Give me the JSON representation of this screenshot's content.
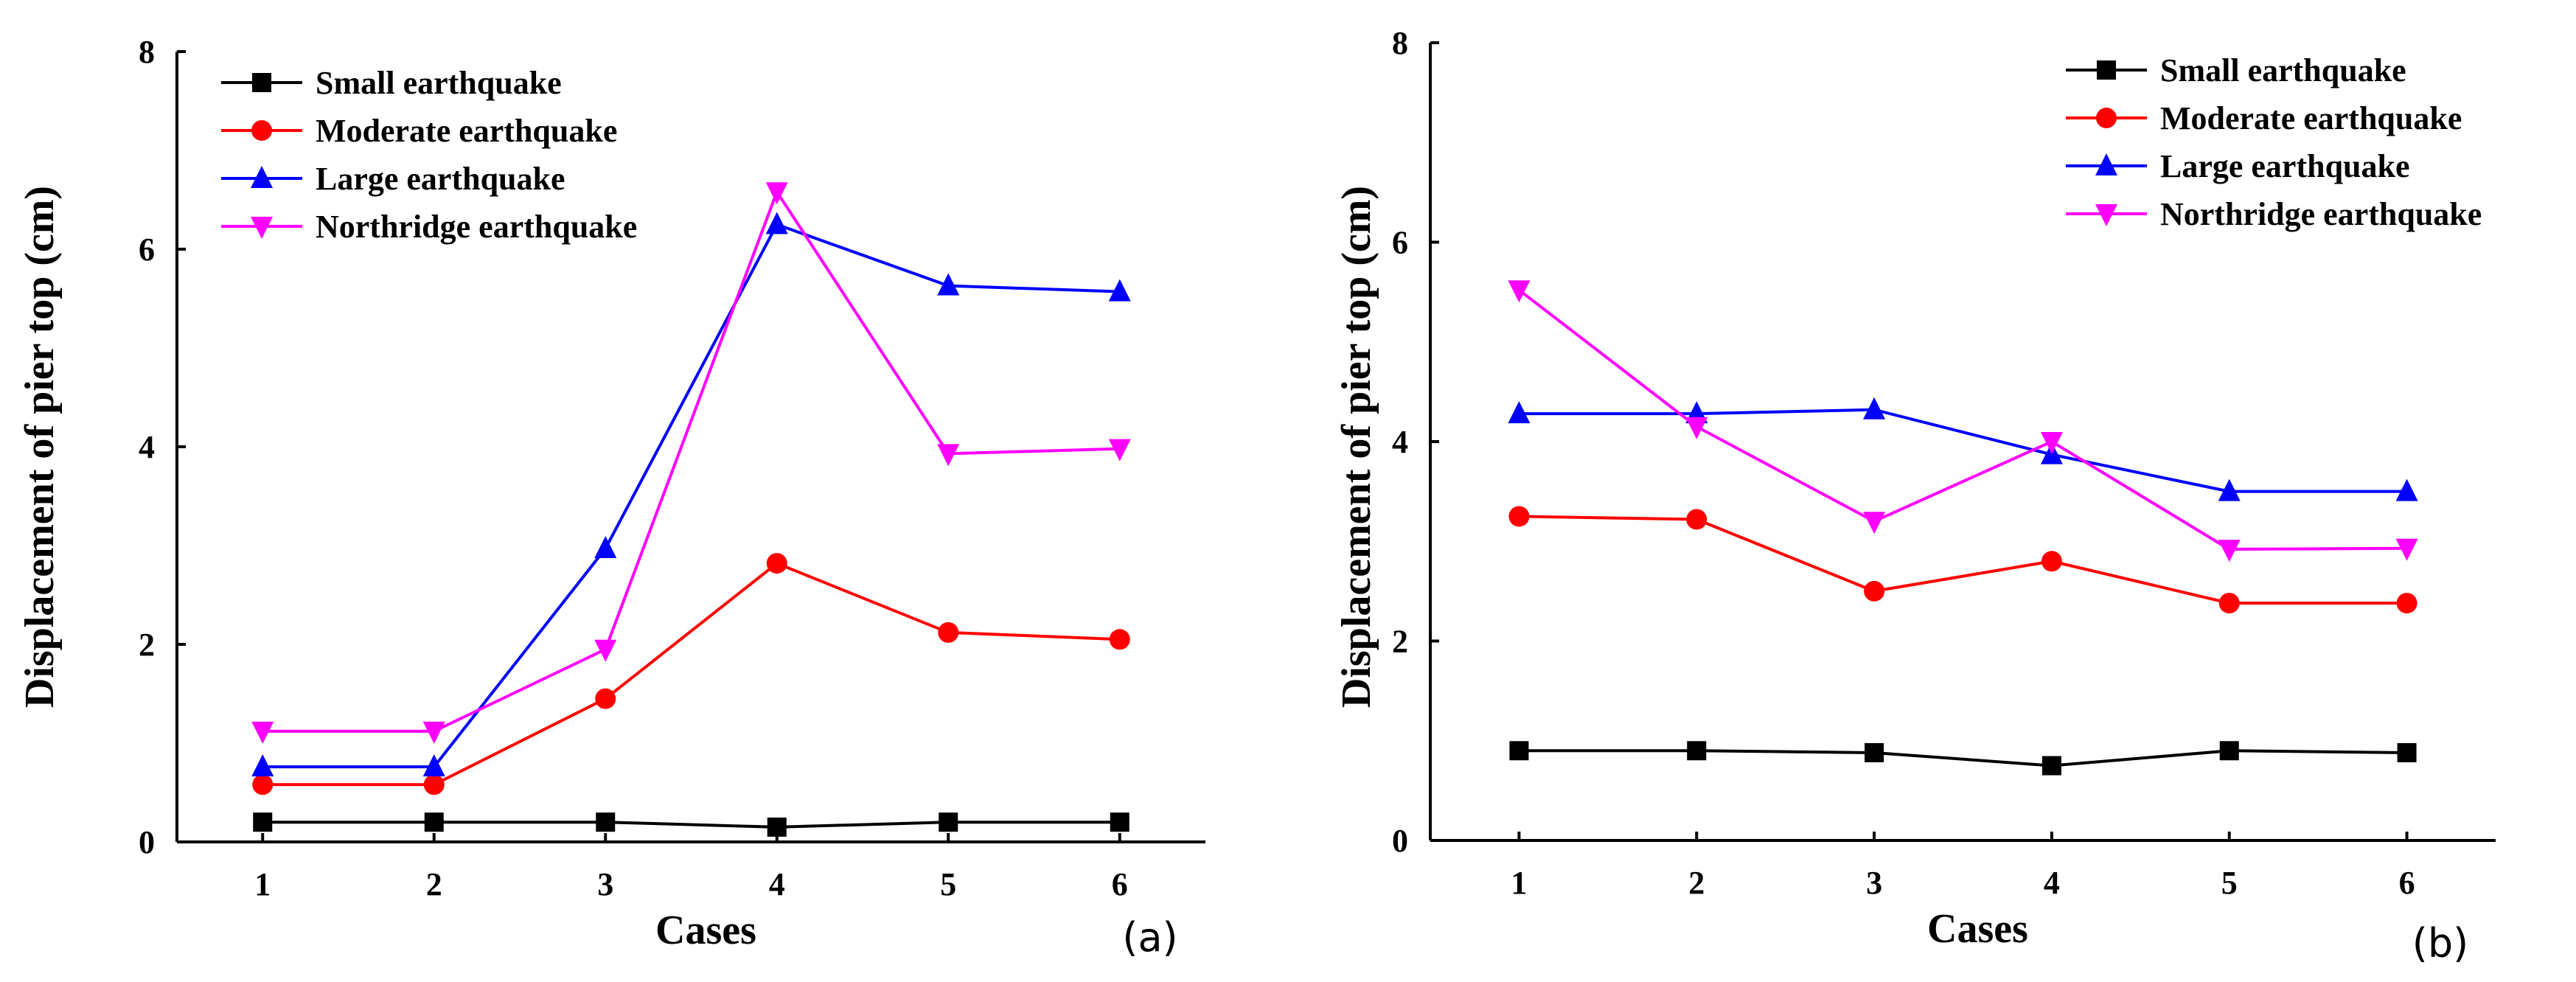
{
  "chart_data": [
    {
      "type": "line",
      "panel_label": "(a)",
      "xlabel": "Cases",
      "ylabel": "Displacement of pier top (cm)",
      "x": [
        1,
        2,
        3,
        4,
        5,
        6
      ],
      "xticks": [
        "1",
        "2",
        "3",
        "4",
        "5",
        "6"
      ],
      "yticks": [
        "0",
        "2",
        "4",
        "6",
        "8"
      ],
      "xlim": [
        0.5,
        6.5
      ],
      "ylim": [
        0,
        8
      ],
      "legend_position": "top-left",
      "series": [
        {
          "name": "Small earthquake",
          "color": "#000000",
          "marker": "square",
          "values": [
            0.2,
            0.2,
            0.2,
            0.15,
            0.2,
            0.2
          ]
        },
        {
          "name": "Moderate earthquake",
          "color": "#ff0000",
          "marker": "circle",
          "values": [
            0.58,
            0.58,
            1.45,
            2.82,
            2.12,
            2.05
          ]
        },
        {
          "name": "Large earthquake",
          "color": "#0000ff",
          "marker": "triangle-up",
          "values": [
            0.76,
            0.76,
            2.97,
            6.25,
            5.63,
            5.57
          ]
        },
        {
          "name": "Northridge earthquake",
          "color": "#ff00ff",
          "marker": "triangle-down",
          "values": [
            1.12,
            1.12,
            1.95,
            6.58,
            3.93,
            3.98
          ]
        }
      ]
    },
    {
      "type": "line",
      "panel_label": "(b)",
      "xlabel": "Cases",
      "ylabel": "Displacement of pier top (cm)",
      "x": [
        1,
        2,
        3,
        4,
        5,
        6
      ],
      "xticks": [
        "1",
        "2",
        "3",
        "4",
        "5",
        "6"
      ],
      "yticks": [
        "0",
        "2",
        "4",
        "6",
        "8"
      ],
      "xlim": [
        0.5,
        6.5
      ],
      "ylim": [
        0,
        8
      ],
      "legend_position": "top-right",
      "series": [
        {
          "name": "Small earthquake",
          "color": "#000000",
          "marker": "square",
          "values": [
            0.9,
            0.9,
            0.88,
            0.75,
            0.9,
            0.88
          ]
        },
        {
          "name": "Moderate earthquake",
          "color": "#ff0000",
          "marker": "circle",
          "values": [
            3.25,
            3.22,
            2.5,
            2.8,
            2.38,
            2.38
          ]
        },
        {
          "name": "Large earthquake",
          "color": "#0000ff",
          "marker": "triangle-up",
          "values": [
            4.28,
            4.28,
            4.32,
            3.87,
            3.5,
            3.5
          ]
        },
        {
          "name": "Northridge earthquake",
          "color": "#ff00ff",
          "marker": "triangle-down",
          "values": [
            5.52,
            4.15,
            3.2,
            4.0,
            2.92,
            2.93
          ]
        }
      ]
    }
  ]
}
